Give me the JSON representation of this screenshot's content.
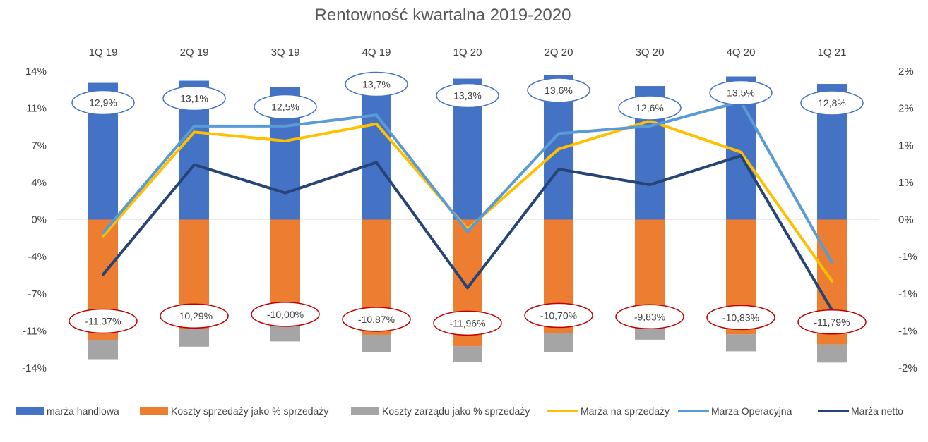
{
  "chart_data": {
    "type": "bar",
    "title": "Rentowność kwartalna 2019-2020",
    "categories": [
      "1Q 19",
      "2Q 19",
      "3Q 19",
      "4Q 19",
      "1Q 20",
      "2Q 20",
      "3Q 20",
      "4Q 20",
      "1Q 21"
    ],
    "y_left": {
      "range": [
        -0.14,
        0.14
      ],
      "ticks": [
        0.14,
        0.105,
        0.07,
        0.035,
        0,
        -0.035,
        -0.07,
        -0.105,
        -0.14
      ],
      "tick_labels": [
        "14%",
        "11%",
        "7%",
        "4%",
        "0%",
        "-4%",
        "-7%",
        "-11%",
        "-14%"
      ]
    },
    "y_right": {
      "range": [
        -0.02,
        0.02
      ],
      "ticks": [
        0.02,
        0.015,
        0.01,
        0.005,
        0,
        -0.005,
        -0.01,
        -0.015,
        -0.02
      ],
      "tick_labels": [
        "2%",
        "2%",
        "1%",
        "1%",
        "0%",
        "-1%",
        "-1%",
        "-1%",
        "-2%"
      ]
    },
    "legend_position": "bottom",
    "grid": false,
    "series": [
      {
        "name": "marża handlowa",
        "kind": "bar",
        "axis": "left",
        "color": "#4472C4",
        "values": [
          0.129,
          0.131,
          0.125,
          0.137,
          0.133,
          0.136,
          0.126,
          0.135,
          0.128
        ],
        "labels": [
          "12,9%",
          "13,1%",
          "12,5%",
          "13,7%",
          "13,3%",
          "13,6%",
          "12,6%",
          "13,5%",
          "12,8%"
        ]
      },
      {
        "name": "Koszty sprzedaży jako % sprzedaży",
        "kind": "bar",
        "axis": "left",
        "color": "#ED7D31",
        "values": [
          -0.1137,
          -0.1029,
          -0.1,
          -0.1087,
          -0.1196,
          -0.107,
          -0.0983,
          -0.1083,
          -0.1179
        ],
        "labels": [
          "-11,37%",
          "-10,29%",
          "-10,00%",
          "-10,87%",
          "-11,96%",
          "-10,70%",
          "-9,83%",
          "-10,83%",
          "-11,79%"
        ]
      },
      {
        "name": "Koszty zarządu jako % sprzedaży",
        "kind": "bar",
        "axis": "left",
        "color": "#A5A5A5",
        "values": [
          -0.018,
          -0.017,
          -0.015,
          -0.016,
          -0.015,
          -0.018,
          -0.015,
          -0.016,
          -0.017
        ]
      },
      {
        "name": "Marża na sprzedaży",
        "kind": "line",
        "axis": "right",
        "color": "#FFC000",
        "values": [
          -0.0022,
          0.0118,
          0.0106,
          0.0129,
          -0.0013,
          0.0095,
          0.0133,
          0.0091,
          -0.0083
        ]
      },
      {
        "name": "Marza Operacyjna",
        "kind": "line",
        "axis": "right",
        "color": "#5B9BD5",
        "values": [
          -0.0018,
          0.0126,
          0.0126,
          0.0141,
          -0.0016,
          0.0116,
          0.0126,
          0.0159,
          -0.0058
        ]
      },
      {
        "name": "Marża netto",
        "kind": "line",
        "axis": "right",
        "color": "#264478",
        "values": [
          -0.0074,
          0.0074,
          0.0036,
          0.0077,
          -0.0092,
          0.0068,
          0.0047,
          0.0086,
          -0.0122
        ]
      }
    ]
  }
}
